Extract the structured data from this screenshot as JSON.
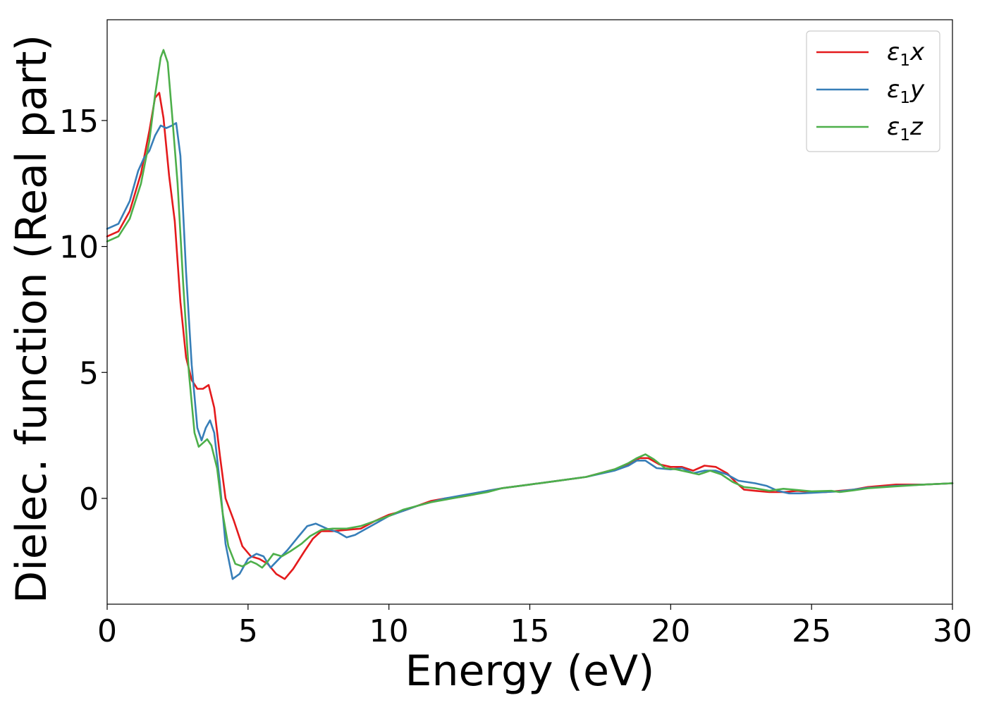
{
  "chart_data": {
    "type": "line",
    "xlabel": "Energy (eV)",
    "ylabel": "Dielec. function (Real part)",
    "xlim": [
      0,
      30
    ],
    "ylim": [
      -4.2,
      19.0
    ],
    "xticks": [
      0,
      5,
      10,
      15,
      20,
      25,
      30
    ],
    "yticks": [
      0,
      5,
      10,
      15
    ],
    "grid": false,
    "legend_position": "top-right",
    "series": [
      {
        "name": "ε1x",
        "legend_base": "ε",
        "legend_sub": "1",
        "legend_tail": "x",
        "color": "#e41a1c",
        "points": [
          [
            0,
            10.4
          ],
          [
            0.4,
            10.6
          ],
          [
            0.8,
            11.4
          ],
          [
            1.2,
            12.9
          ],
          [
            1.5,
            14.6
          ],
          [
            1.7,
            15.9
          ],
          [
            1.85,
            16.1
          ],
          [
            2.0,
            15.1
          ],
          [
            2.2,
            12.8
          ],
          [
            2.4,
            11.0
          ],
          [
            2.6,
            7.8
          ],
          [
            2.8,
            5.6
          ],
          [
            3.0,
            4.7
          ],
          [
            3.2,
            4.35
          ],
          [
            3.4,
            4.35
          ],
          [
            3.6,
            4.5
          ],
          [
            3.8,
            3.6
          ],
          [
            4.0,
            1.7
          ],
          [
            4.2,
            0.0
          ],
          [
            4.5,
            -0.9
          ],
          [
            4.8,
            -1.9
          ],
          [
            5.1,
            -2.3
          ],
          [
            5.4,
            -2.4
          ],
          [
            5.7,
            -2.6
          ],
          [
            6.0,
            -3.0
          ],
          [
            6.3,
            -3.2
          ],
          [
            6.6,
            -2.8
          ],
          [
            7.0,
            -2.1
          ],
          [
            7.3,
            -1.6
          ],
          [
            7.6,
            -1.3
          ],
          [
            8.0,
            -1.3
          ],
          [
            8.5,
            -1.25
          ],
          [
            9.0,
            -1.2
          ],
          [
            9.5,
            -0.9
          ],
          [
            10.0,
            -0.65
          ],
          [
            10.5,
            -0.5
          ],
          [
            11.0,
            -0.3
          ],
          [
            11.5,
            -0.1
          ],
          [
            12,
            0.0
          ],
          [
            12.5,
            0.05
          ],
          [
            13,
            0.15
          ],
          [
            13.5,
            0.3
          ],
          [
            14,
            0.4
          ],
          [
            15,
            0.55
          ],
          [
            16,
            0.7
          ],
          [
            17,
            0.85
          ],
          [
            18,
            1.15
          ],
          [
            18.5,
            1.35
          ],
          [
            18.9,
            1.6
          ],
          [
            19.2,
            1.6
          ],
          [
            19.6,
            1.35
          ],
          [
            20,
            1.25
          ],
          [
            20.4,
            1.25
          ],
          [
            20.8,
            1.1
          ],
          [
            21.2,
            1.3
          ],
          [
            21.6,
            1.25
          ],
          [
            22,
            1.0
          ],
          [
            22.3,
            0.65
          ],
          [
            22.6,
            0.35
          ],
          [
            23,
            0.3
          ],
          [
            23.5,
            0.25
          ],
          [
            24,
            0.25
          ],
          [
            24.5,
            0.3
          ],
          [
            25,
            0.25
          ],
          [
            25.5,
            0.25
          ],
          [
            26,
            0.3
          ],
          [
            26.5,
            0.35
          ],
          [
            27,
            0.45
          ],
          [
            27.5,
            0.5
          ],
          [
            28,
            0.55
          ],
          [
            29,
            0.55
          ],
          [
            30,
            0.6
          ]
        ]
      },
      {
        "name": "ε1y",
        "legend_base": "ε",
        "legend_sub": "1",
        "legend_tail": "y",
        "color": "#377eb8",
        "points": [
          [
            0,
            10.7
          ],
          [
            0.4,
            10.9
          ],
          [
            0.8,
            11.8
          ],
          [
            1.1,
            13.0
          ],
          [
            1.3,
            13.5
          ],
          [
            1.5,
            13.8
          ],
          [
            1.7,
            14.4
          ],
          [
            1.9,
            14.8
          ],
          [
            2.1,
            14.7
          ],
          [
            2.3,
            14.8
          ],
          [
            2.45,
            14.9
          ],
          [
            2.6,
            13.6
          ],
          [
            2.8,
            9.0
          ],
          [
            3.0,
            5.3
          ],
          [
            3.2,
            2.8
          ],
          [
            3.35,
            2.3
          ],
          [
            3.5,
            2.8
          ],
          [
            3.65,
            3.1
          ],
          [
            3.8,
            2.6
          ],
          [
            4.0,
            0.6
          ],
          [
            4.2,
            -1.8
          ],
          [
            4.45,
            -3.2
          ],
          [
            4.7,
            -3.0
          ],
          [
            5.0,
            -2.4
          ],
          [
            5.3,
            -2.2
          ],
          [
            5.55,
            -2.3
          ],
          [
            5.8,
            -2.75
          ],
          [
            6.1,
            -2.4
          ],
          [
            6.4,
            -2.05
          ],
          [
            6.8,
            -1.5
          ],
          [
            7.1,
            -1.1
          ],
          [
            7.4,
            -1.0
          ],
          [
            7.8,
            -1.2
          ],
          [
            8.2,
            -1.35
          ],
          [
            8.5,
            -1.55
          ],
          [
            8.8,
            -1.45
          ],
          [
            9.2,
            -1.2
          ],
          [
            9.6,
            -0.95
          ],
          [
            10,
            -0.7
          ],
          [
            10.5,
            -0.5
          ],
          [
            11,
            -0.3
          ],
          [
            11.5,
            -0.15
          ],
          [
            12,
            0.0
          ],
          [
            12.5,
            0.1
          ],
          [
            13,
            0.2
          ],
          [
            13.5,
            0.3
          ],
          [
            14,
            0.4
          ],
          [
            15,
            0.55
          ],
          [
            16,
            0.7
          ],
          [
            17,
            0.85
          ],
          [
            18,
            1.1
          ],
          [
            18.5,
            1.3
          ],
          [
            18.8,
            1.5
          ],
          [
            19.1,
            1.5
          ],
          [
            19.5,
            1.2
          ],
          [
            20,
            1.15
          ],
          [
            20.4,
            1.2
          ],
          [
            20.8,
            1.0
          ],
          [
            21.2,
            1.1
          ],
          [
            21.6,
            1.1
          ],
          [
            22.0,
            0.95
          ],
          [
            22.4,
            0.7
          ],
          [
            23,
            0.6
          ],
          [
            23.4,
            0.5
          ],
          [
            23.8,
            0.3
          ],
          [
            24.2,
            0.2
          ],
          [
            24.6,
            0.2
          ],
          [
            25,
            0.22
          ],
          [
            25.5,
            0.25
          ],
          [
            26,
            0.28
          ],
          [
            26.5,
            0.35
          ],
          [
            27,
            0.42
          ],
          [
            27.5,
            0.45
          ],
          [
            28,
            0.5
          ],
          [
            29,
            0.55
          ],
          [
            30,
            0.6
          ]
        ]
      },
      {
        "name": "ε1z",
        "legend_base": "ε",
        "legend_sub": "1",
        "legend_tail": "z",
        "color": "#4daf4a",
        "points": [
          [
            0,
            10.2
          ],
          [
            0.4,
            10.4
          ],
          [
            0.8,
            11.1
          ],
          [
            1.2,
            12.5
          ],
          [
            1.5,
            14.2
          ],
          [
            1.7,
            16.0
          ],
          [
            1.9,
            17.5
          ],
          [
            2.0,
            17.8
          ],
          [
            2.15,
            17.3
          ],
          [
            2.3,
            15.3
          ],
          [
            2.5,
            12.5
          ],
          [
            2.7,
            8.5
          ],
          [
            2.9,
            5.0
          ],
          [
            3.1,
            2.6
          ],
          [
            3.25,
            2.05
          ],
          [
            3.4,
            2.2
          ],
          [
            3.55,
            2.35
          ],
          [
            3.7,
            2.1
          ],
          [
            3.9,
            1.2
          ],
          [
            4.1,
            -0.6
          ],
          [
            4.3,
            -1.9
          ],
          [
            4.55,
            -2.6
          ],
          [
            4.8,
            -2.7
          ],
          [
            5.1,
            -2.5
          ],
          [
            5.3,
            -2.6
          ],
          [
            5.5,
            -2.75
          ],
          [
            5.7,
            -2.5
          ],
          [
            5.9,
            -2.2
          ],
          [
            6.2,
            -2.3
          ],
          [
            6.5,
            -2.1
          ],
          [
            6.9,
            -1.8
          ],
          [
            7.2,
            -1.5
          ],
          [
            7.6,
            -1.25
          ],
          [
            8.0,
            -1.2
          ],
          [
            8.5,
            -1.2
          ],
          [
            9.0,
            -1.1
          ],
          [
            9.5,
            -0.9
          ],
          [
            10,
            -0.7
          ],
          [
            10.5,
            -0.45
          ],
          [
            11,
            -0.3
          ],
          [
            11.5,
            -0.15
          ],
          [
            12,
            -0.05
          ],
          [
            12.5,
            0.05
          ],
          [
            13,
            0.15
          ],
          [
            13.5,
            0.25
          ],
          [
            14,
            0.4
          ],
          [
            15,
            0.55
          ],
          [
            16,
            0.7
          ],
          [
            17,
            0.85
          ],
          [
            18,
            1.15
          ],
          [
            18.5,
            1.4
          ],
          [
            18.8,
            1.6
          ],
          [
            19.1,
            1.75
          ],
          [
            19.4,
            1.55
          ],
          [
            19.8,
            1.2
          ],
          [
            20.2,
            1.15
          ],
          [
            20.6,
            1.05
          ],
          [
            21.0,
            0.95
          ],
          [
            21.4,
            1.1
          ],
          [
            21.8,
            0.95
          ],
          [
            22.2,
            0.65
          ],
          [
            22.6,
            0.45
          ],
          [
            23,
            0.4
          ],
          [
            23.5,
            0.3
          ],
          [
            24,
            0.38
          ],
          [
            24.5,
            0.33
          ],
          [
            25,
            0.28
          ],
          [
            25.7,
            0.3
          ],
          [
            26,
            0.25
          ],
          [
            26.5,
            0.32
          ],
          [
            27,
            0.4
          ],
          [
            28,
            0.48
          ],
          [
            29,
            0.55
          ],
          [
            30,
            0.6
          ]
        ]
      }
    ]
  }
}
